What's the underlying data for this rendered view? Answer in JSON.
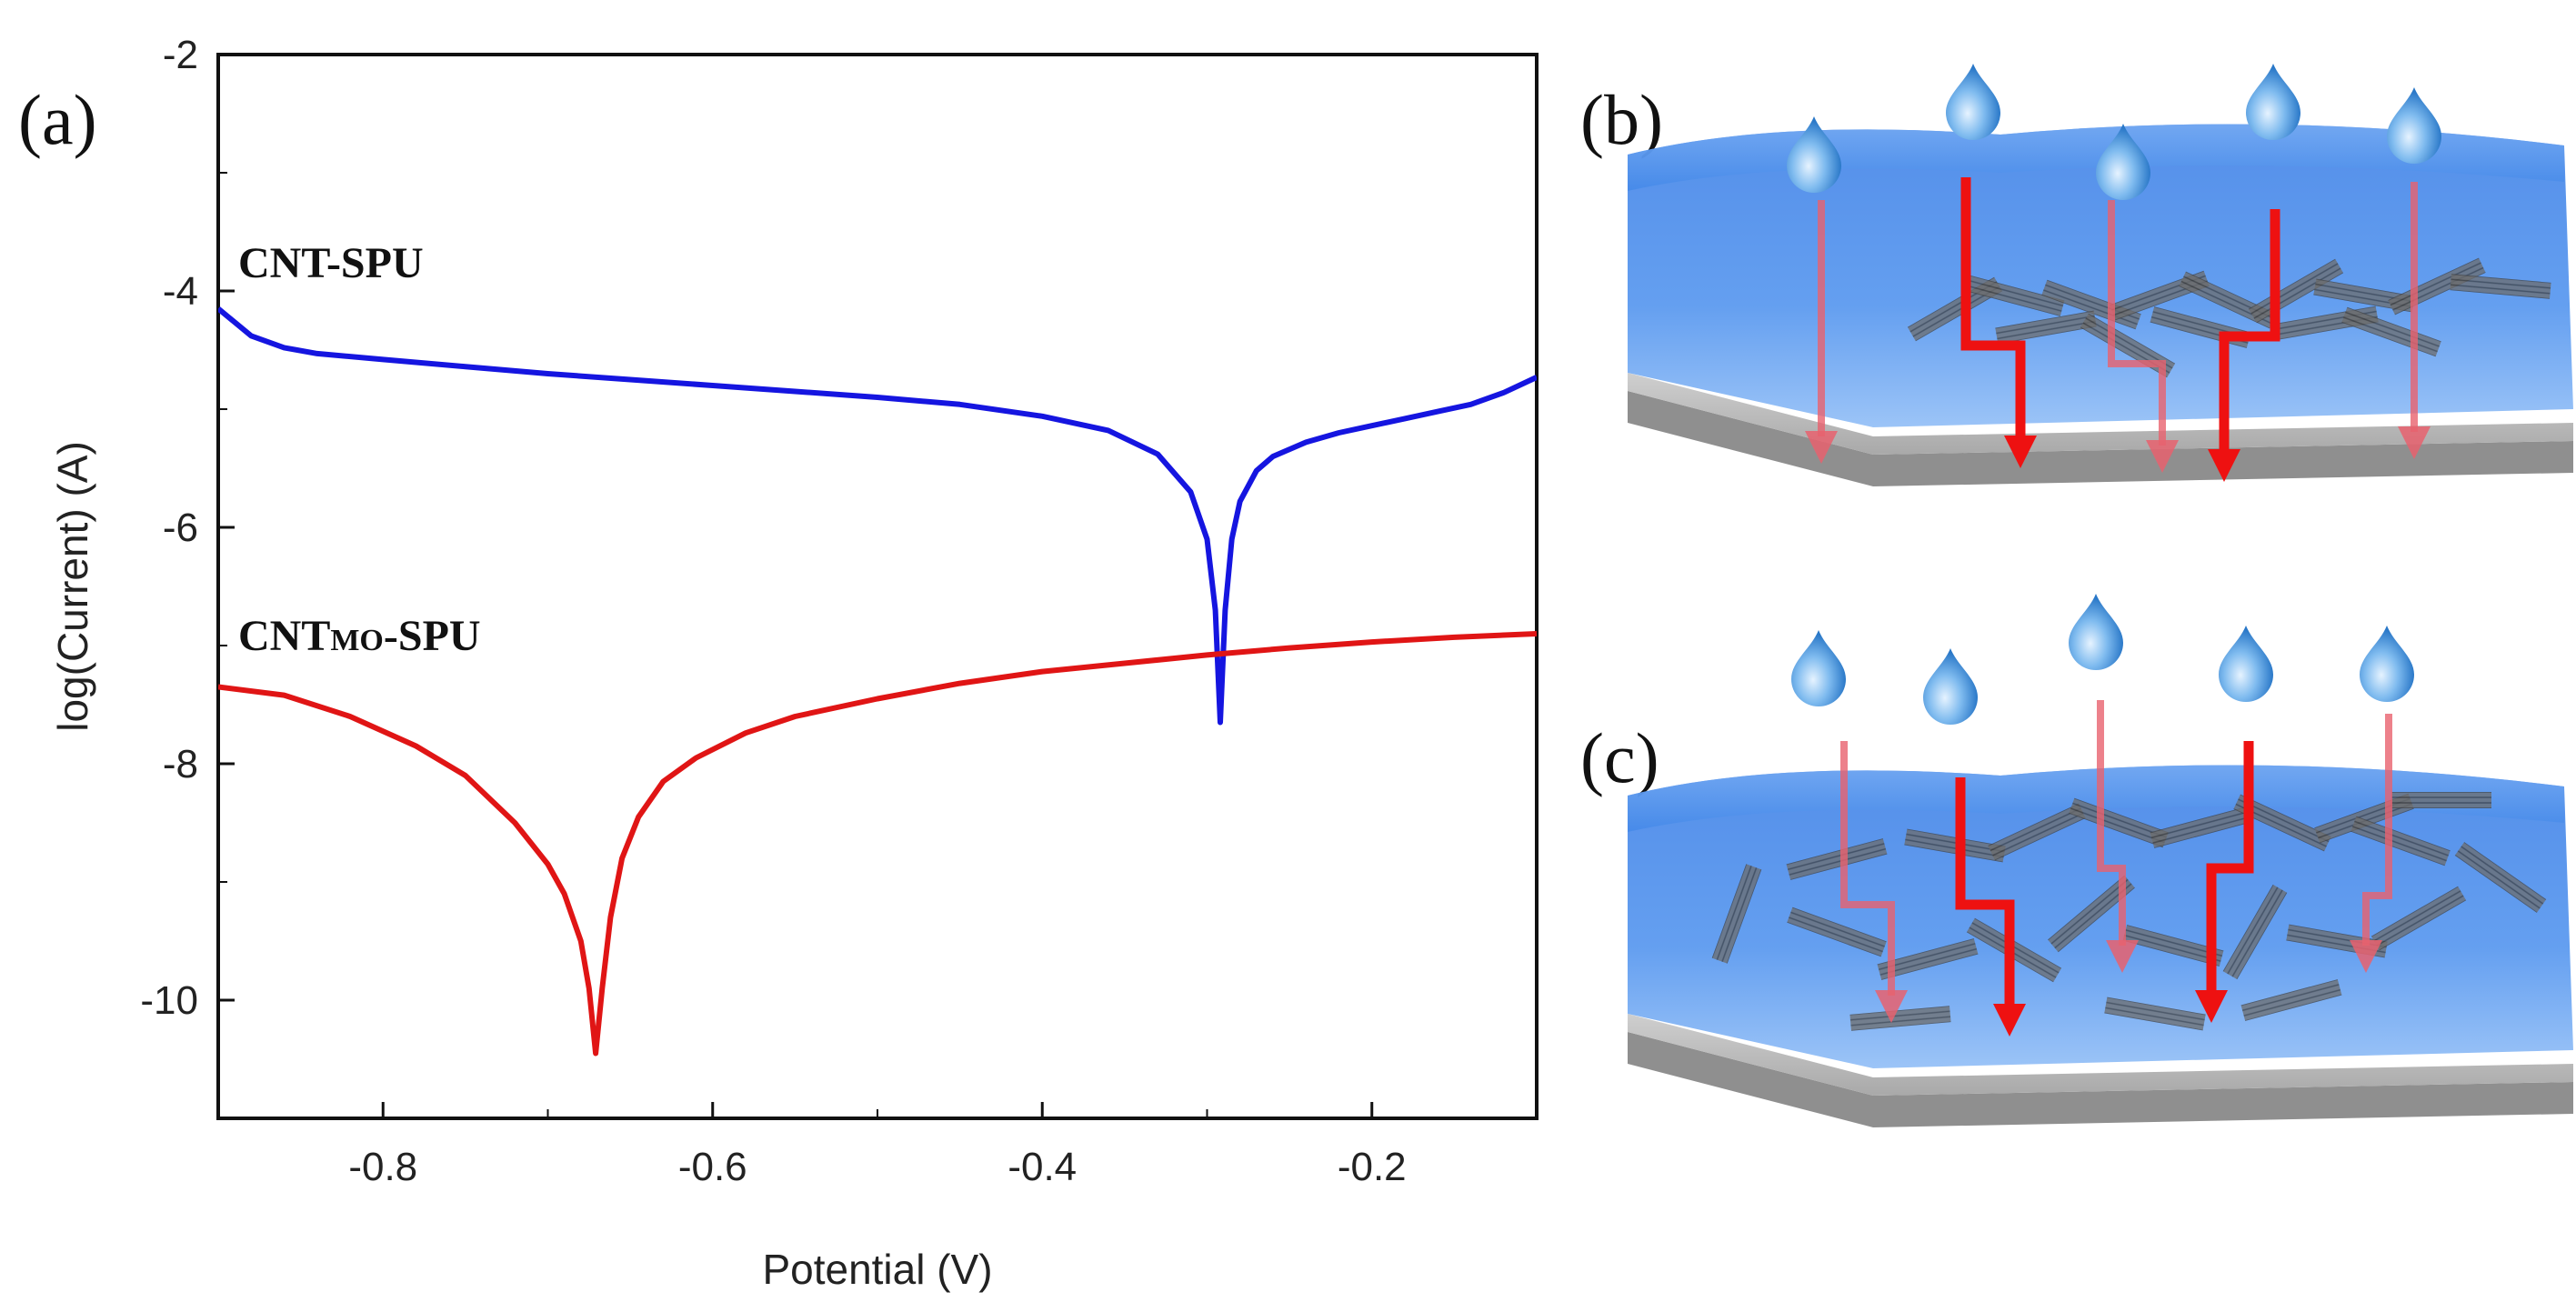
{
  "figure": {
    "panels": {
      "a": "(a)",
      "b": "(b)",
      "c": "(c)"
    },
    "schematic_colors": {
      "coating": "#3f86e8",
      "substrate": "#9e9e9e",
      "arrow_strong": "#ee1111",
      "arrow_weak": "#e8626e",
      "droplet": "#3a8fd6",
      "nanotube": "#5a5a5a"
    }
  },
  "chart_data": {
    "type": "line",
    "title": "",
    "xlabel": "Potential (V)",
    "ylabel": "log(Current) (A)",
    "xlim": [
      -0.9,
      -0.1
    ],
    "ylim": [
      -11,
      -2
    ],
    "xticks": [
      -0.8,
      -0.6,
      -0.4,
      -0.2
    ],
    "yticks": [
      -2,
      -4,
      -6,
      -8,
      -10
    ],
    "xtick_labels": [
      "-0.8",
      "-0.6",
      "-0.4",
      "-0.2"
    ],
    "ytick_labels": [
      "-2",
      "-4",
      "-6",
      "-8",
      "-10"
    ],
    "grid": false,
    "series": [
      {
        "name": "CNT-SPU",
        "label_main": "CNT-SPU",
        "label_sub": "",
        "label_tail": "",
        "color": "#1515e0",
        "x": [
          -0.9,
          -0.88,
          -0.86,
          -0.84,
          -0.8,
          -0.75,
          -0.7,
          -0.65,
          -0.6,
          -0.55,
          -0.5,
          -0.45,
          -0.4,
          -0.36,
          -0.33,
          -0.31,
          -0.3,
          -0.295,
          -0.292,
          -0.289,
          -0.285,
          -0.28,
          -0.27,
          -0.26,
          -0.24,
          -0.22,
          -0.2,
          -0.18,
          -0.16,
          -0.14,
          -0.12,
          -0.1
        ],
        "y": [
          -4.15,
          -4.38,
          -4.48,
          -4.53,
          -4.58,
          -4.64,
          -4.7,
          -4.75,
          -4.8,
          -4.85,
          -4.9,
          -4.96,
          -5.06,
          -5.18,
          -5.38,
          -5.7,
          -6.1,
          -6.7,
          -7.65,
          -6.7,
          -6.1,
          -5.78,
          -5.52,
          -5.4,
          -5.28,
          -5.2,
          -5.14,
          -5.08,
          -5.02,
          -4.96,
          -4.86,
          -4.73
        ]
      },
      {
        "name": "CNTMO-SPU",
        "label_main": "CNT",
        "label_sub": "MO",
        "label_tail": "-SPU",
        "color": "#e01515",
        "x": [
          -0.9,
          -0.86,
          -0.82,
          -0.78,
          -0.75,
          -0.72,
          -0.7,
          -0.69,
          -0.68,
          -0.675,
          -0.671,
          -0.667,
          -0.662,
          -0.655,
          -0.645,
          -0.63,
          -0.61,
          -0.58,
          -0.55,
          -0.5,
          -0.45,
          -0.4,
          -0.35,
          -0.3,
          -0.25,
          -0.2,
          -0.15,
          -0.1
        ],
        "y": [
          -7.35,
          -7.42,
          -7.6,
          -7.85,
          -8.1,
          -8.5,
          -8.85,
          -9.1,
          -9.5,
          -9.9,
          -10.45,
          -9.9,
          -9.3,
          -8.8,
          -8.45,
          -8.15,
          -7.95,
          -7.74,
          -7.6,
          -7.45,
          -7.32,
          -7.22,
          -7.15,
          -7.08,
          -7.02,
          -6.97,
          -6.93,
          -6.9
        ]
      }
    ]
  }
}
